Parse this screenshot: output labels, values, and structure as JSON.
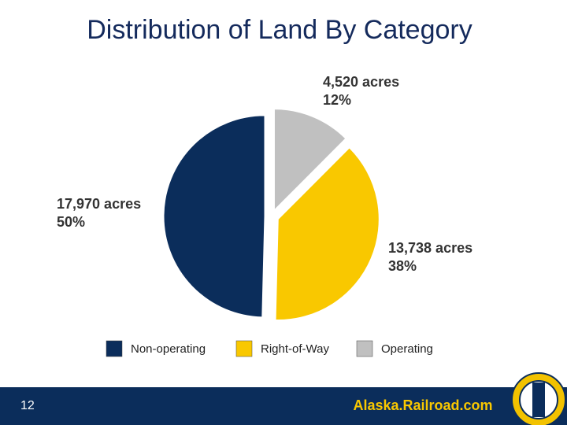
{
  "chart_data": {
    "type": "pie",
    "title": "Distribution of Land  By Category",
    "categories": [
      "Non-operating",
      "Right-of-Way",
      "Operating"
    ],
    "values": [
      17970,
      13738,
      4520
    ],
    "value_labels": [
      "17,970 acres",
      "13,738 acres",
      "4,520 acres"
    ],
    "percents": [
      50,
      38,
      12
    ],
    "percent_labels": [
      "50%",
      "38%",
      "12%"
    ],
    "colors": [
      "#0b2d5b",
      "#f9c800",
      "#c0c0c0"
    ],
    "legend": "bottom"
  },
  "footer": {
    "page_number": "12",
    "website": "Alaska.Railroad.com"
  }
}
